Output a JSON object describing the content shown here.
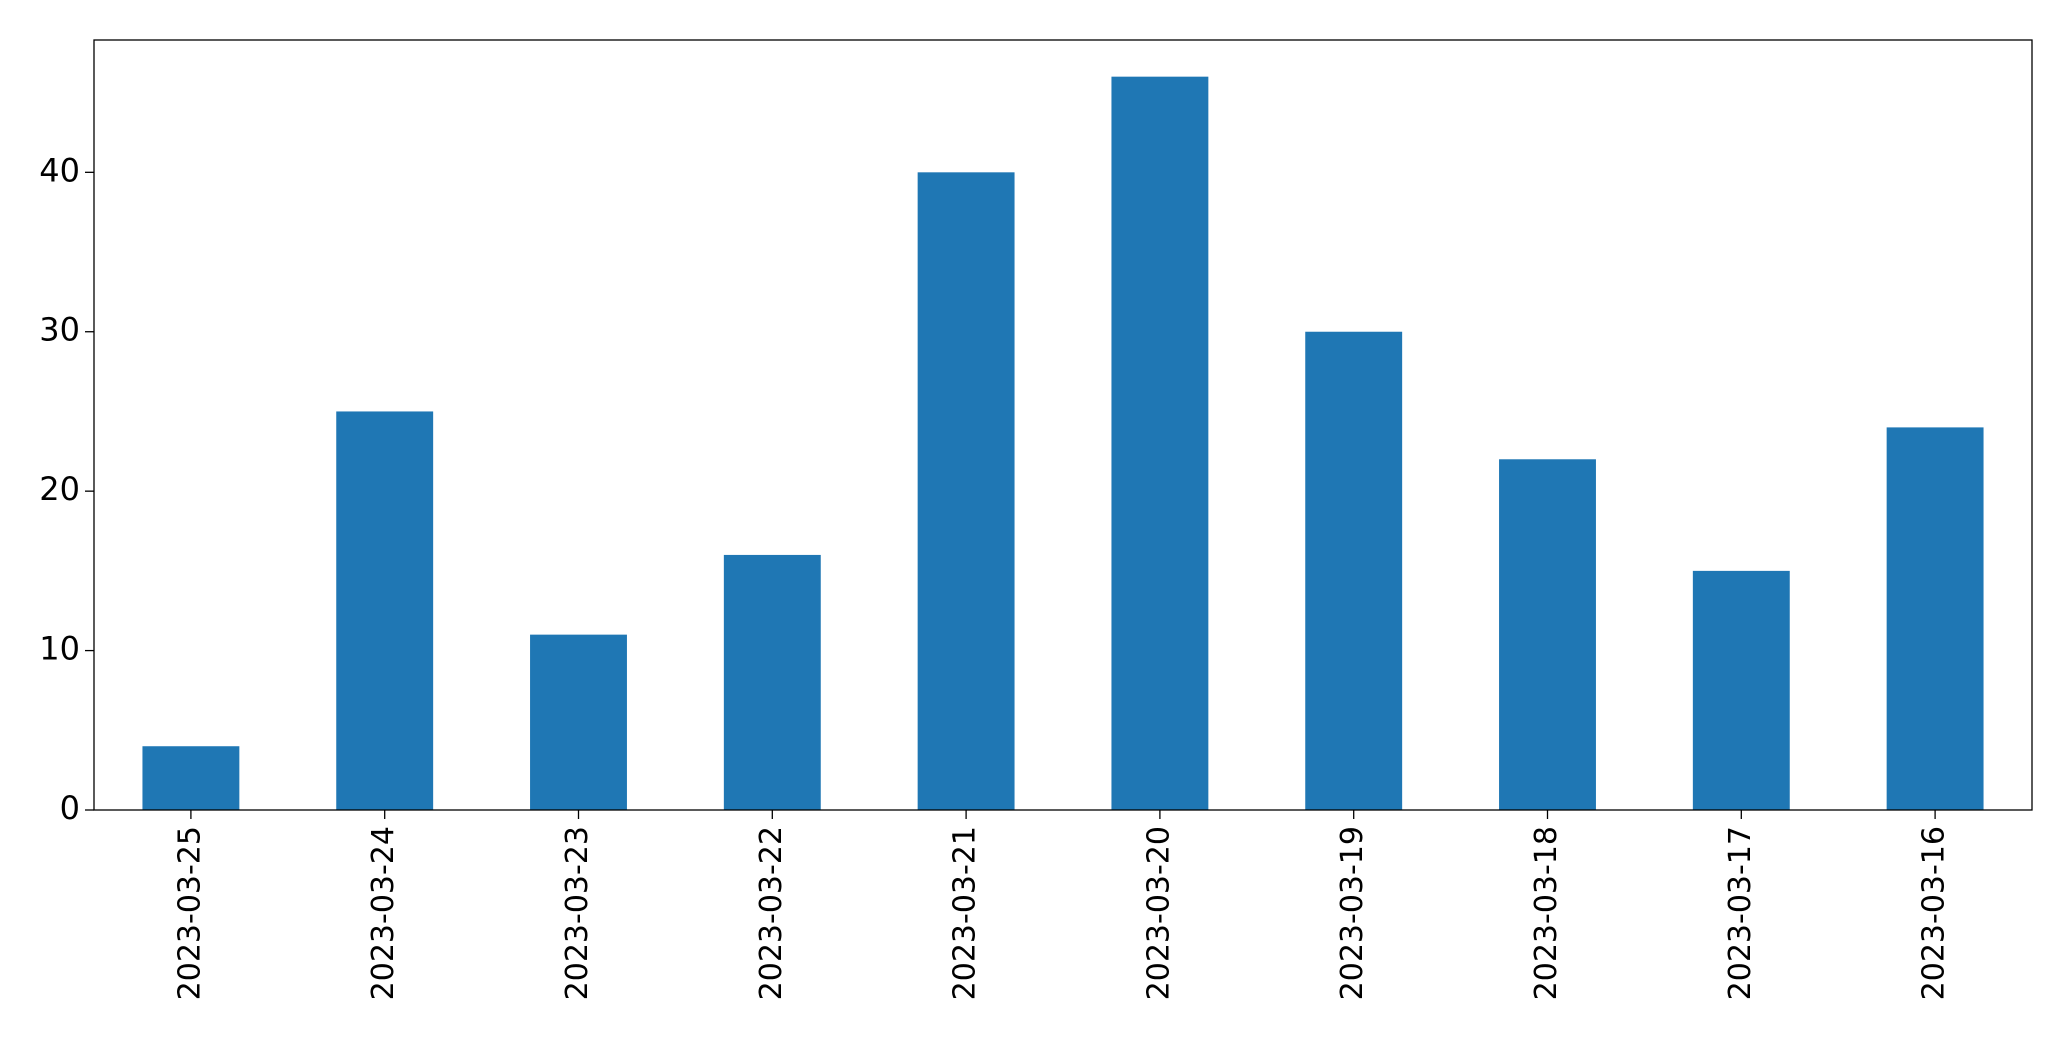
{
  "chart_data": {
    "type": "bar",
    "categories": [
      "2023-03-25",
      "2023-03-24",
      "2023-03-23",
      "2023-03-22",
      "2023-03-21",
      "2023-03-20",
      "2023-03-19",
      "2023-03-18",
      "2023-03-17",
      "2023-03-16"
    ],
    "values": [
      4,
      25,
      11,
      16,
      40,
      46,
      30,
      22,
      15,
      24
    ],
    "color": "#1f77b4",
    "ylim": [
      0,
      48.3
    ],
    "yticks": [
      0,
      10,
      20,
      30,
      40
    ],
    "grid": false
  }
}
